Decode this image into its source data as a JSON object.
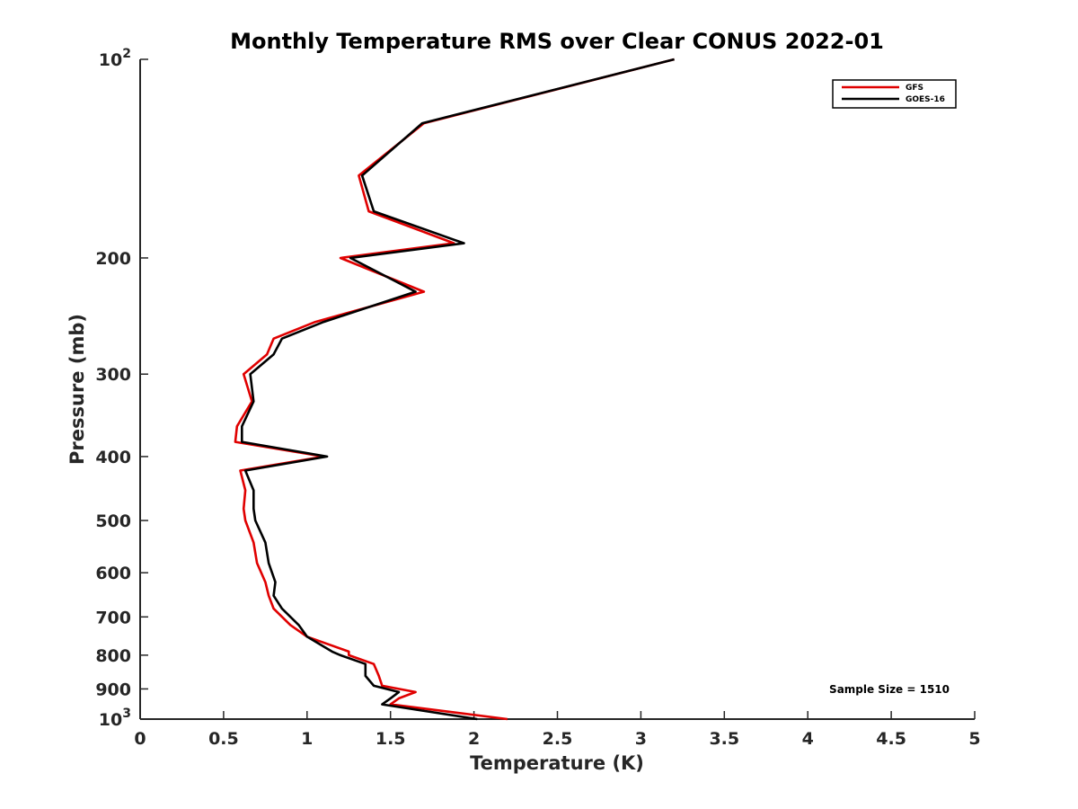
{
  "chart_data": {
    "type": "line",
    "title": "Monthly Temperature RMS over Clear CONUS  2022-01",
    "xlabel": "Temperature (K)",
    "ylabel": "Pressure (mb)",
    "xlim": [
      0,
      5
    ],
    "ylim": [
      100,
      1000
    ],
    "y_scale": "log",
    "y_reversed": true,
    "grid": false,
    "legend_position": "top-right",
    "x_ticks": [
      "0",
      "0.5",
      "1",
      "1.5",
      "2",
      "2.5",
      "3",
      "3.5",
      "4",
      "4.5",
      "5"
    ],
    "y_ticks": [
      {
        "value": 100,
        "label": "10",
        "sup": "2"
      },
      {
        "value": 200,
        "label": "200",
        "sup": ""
      },
      {
        "value": 300,
        "label": "300",
        "sup": ""
      },
      {
        "value": 400,
        "label": "400",
        "sup": ""
      },
      {
        "value": 500,
        "label": "500",
        "sup": ""
      },
      {
        "value": 600,
        "label": "600",
        "sup": ""
      },
      {
        "value": 700,
        "label": "700",
        "sup": ""
      },
      {
        "value": 800,
        "label": "800",
        "sup": ""
      },
      {
        "value": 900,
        "label": "900",
        "sup": ""
      },
      {
        "value": 1000,
        "label": "10",
        "sup": "3"
      }
    ],
    "annotation": "Sample Size = 1510",
    "series": [
      {
        "name": "GFS",
        "color": "#e00000",
        "points": [
          [
            3.2,
            100
          ],
          [
            1.7,
            125
          ],
          [
            1.31,
            150
          ],
          [
            1.37,
            170
          ],
          [
            1.88,
            190
          ],
          [
            1.2,
            200
          ],
          [
            1.7,
            225
          ],
          [
            1.05,
            250
          ],
          [
            0.8,
            265
          ],
          [
            0.76,
            280
          ],
          [
            0.62,
            300
          ],
          [
            0.67,
            330
          ],
          [
            0.58,
            360
          ],
          [
            0.57,
            380
          ],
          [
            1.1,
            400
          ],
          [
            0.6,
            420
          ],
          [
            0.63,
            450
          ],
          [
            0.62,
            480
          ],
          [
            0.63,
            500
          ],
          [
            0.68,
            540
          ],
          [
            0.7,
            580
          ],
          [
            0.75,
            620
          ],
          [
            0.77,
            650
          ],
          [
            0.8,
            680
          ],
          [
            0.9,
            720
          ],
          [
            1.0,
            750
          ],
          [
            1.25,
            790
          ],
          [
            1.25,
            800
          ],
          [
            1.4,
            825
          ],
          [
            1.43,
            860
          ],
          [
            1.45,
            890
          ],
          [
            1.65,
            910
          ],
          [
            1.55,
            930
          ],
          [
            1.5,
            950
          ],
          [
            2.2,
            1000
          ]
        ]
      },
      {
        "name": "GOES-16",
        "color": "#000000",
        "points": [
          [
            3.2,
            100
          ],
          [
            1.69,
            125
          ],
          [
            1.33,
            150
          ],
          [
            1.4,
            170
          ],
          [
            1.94,
            190
          ],
          [
            1.26,
            200
          ],
          [
            1.65,
            225
          ],
          [
            1.1,
            250
          ],
          [
            0.85,
            265
          ],
          [
            0.8,
            280
          ],
          [
            0.66,
            300
          ],
          [
            0.68,
            330
          ],
          [
            0.61,
            360
          ],
          [
            0.61,
            380
          ],
          [
            1.12,
            400
          ],
          [
            0.63,
            420
          ],
          [
            0.68,
            450
          ],
          [
            0.68,
            480
          ],
          [
            0.69,
            500
          ],
          [
            0.75,
            540
          ],
          [
            0.77,
            580
          ],
          [
            0.81,
            620
          ],
          [
            0.8,
            650
          ],
          [
            0.85,
            680
          ],
          [
            0.95,
            720
          ],
          [
            1.0,
            750
          ],
          [
            1.15,
            790
          ],
          [
            1.2,
            800
          ],
          [
            1.35,
            825
          ],
          [
            1.35,
            860
          ],
          [
            1.4,
            890
          ],
          [
            1.55,
            910
          ],
          [
            1.5,
            930
          ],
          [
            1.45,
            950
          ],
          [
            2.02,
            1000
          ]
        ]
      }
    ]
  }
}
